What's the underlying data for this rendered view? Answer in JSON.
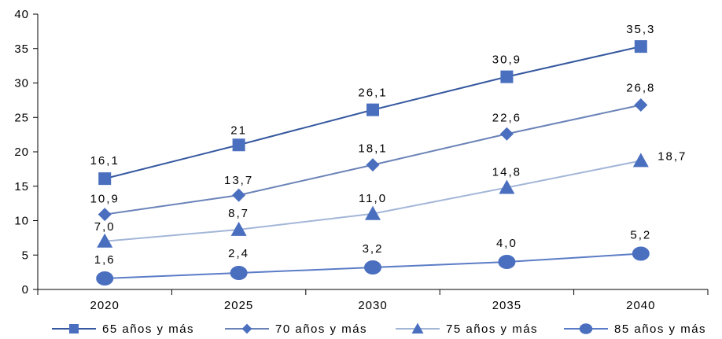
{
  "chart_data": {
    "type": "line",
    "categories": [
      "2020",
      "2025",
      "2030",
      "2035",
      "2040"
    ],
    "ylim": [
      0,
      40
    ],
    "yticks": [
      0,
      5,
      10,
      15,
      20,
      25,
      30,
      35,
      40
    ],
    "grid": false,
    "legend_position": "bottom",
    "series": [
      {
        "name": "65 años y más",
        "marker": "square",
        "color": "#35589f",
        "values": [
          16.1,
          21,
          26.1,
          30.9,
          35.3
        ],
        "labels": [
          "16,1",
          "21",
          "26,1",
          "30,9",
          "35,3"
        ]
      },
      {
        "name": "70 años y más",
        "marker": "diamond",
        "color": "#6b83b8",
        "values": [
          10.9,
          13.7,
          18.1,
          22.6,
          26.8
        ],
        "labels": [
          "10,9",
          "13,7",
          "18,1",
          "22,6",
          "26,8"
        ]
      },
      {
        "name": "75 años y más",
        "marker": "triangle",
        "color": "#a3b6d8",
        "values": [
          7.0,
          8.7,
          11.0,
          14.8,
          18.7
        ],
        "labels": [
          "7,0",
          "8,7",
          "11,0",
          "14,8",
          "18,7"
        ]
      },
      {
        "name": "85 años y más",
        "marker": "circle",
        "color": "#5b7cc6",
        "values": [
          1.6,
          2.4,
          3.2,
          4.0,
          5.2
        ],
        "labels": [
          "1,6",
          "2,4",
          "3,2",
          "4,0",
          "5,2"
        ]
      }
    ]
  },
  "colors": {
    "marker_fill": "#4a6fbf",
    "axis": "#000000"
  }
}
